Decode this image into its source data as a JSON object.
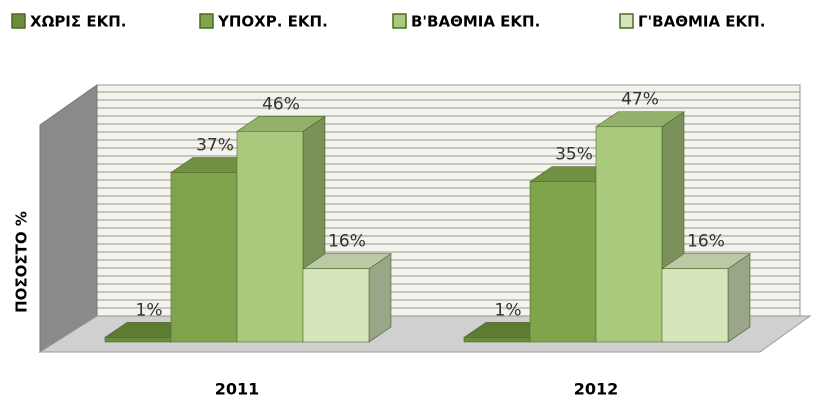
{
  "chart_data": {
    "type": "bar3d",
    "categories": [
      "2011",
      "2012"
    ],
    "y_label": "ΠΟΣΟΣΤΟ %",
    "ylim": [
      0,
      50
    ],
    "series": [
      {
        "name": "ΧΩΡΙΣ ΕΚΠ.",
        "color": "#6b8c3a",
        "values": [
          1,
          1
        ],
        "value_labels": [
          "1%",
          "1%"
        ]
      },
      {
        "name": "ΥΠΟΧΡ. ΕΚΠ.",
        "color": "#80a44c",
        "values": [
          37,
          35
        ],
        "value_labels": [
          "37%",
          "35%"
        ]
      },
      {
        "name": "Β'ΒΑΘΜΙΑ ΕΚΠ.",
        "color": "#a9ca7c",
        "values": [
          46,
          47
        ],
        "value_labels": [
          "46%",
          "47%"
        ]
      },
      {
        "name": "Γ'ΒΑΘΜΙΑ ΕΚΠ.",
        "color": "#d5e6bb",
        "values": [
          16,
          16
        ],
        "value_labels": [
          "16%",
          "16%"
        ]
      }
    ],
    "legend": "top"
  }
}
